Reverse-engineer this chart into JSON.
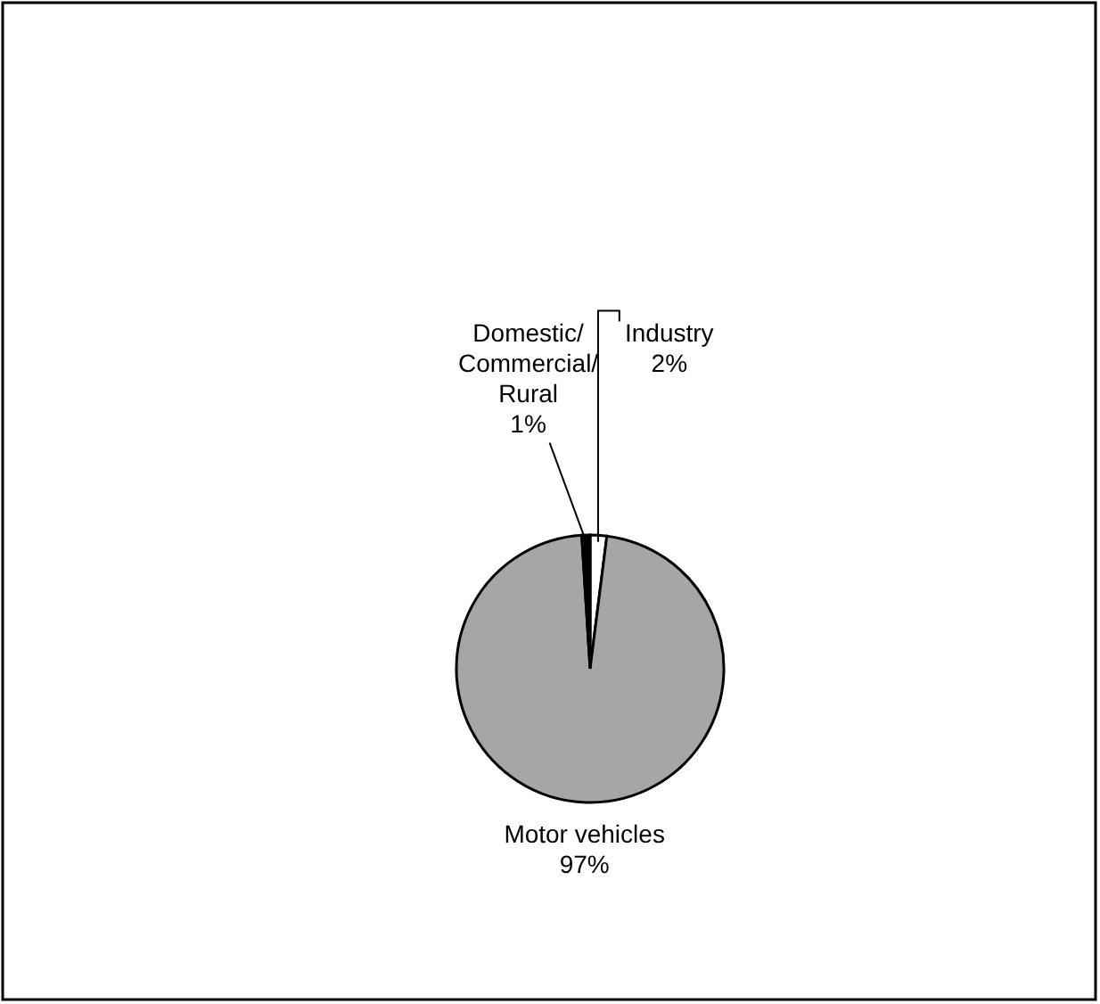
{
  "chart_data": {
    "type": "pie",
    "categories": [
      "Industry",
      "Motor vehicles",
      "Domestic/Commercial/Rural"
    ],
    "values": [
      2,
      97,
      1
    ],
    "colors": [
      "#ffffff",
      "#a6a6a6",
      "#000000"
    ],
    "value_labels": [
      "2%",
      "97%",
      "1%"
    ]
  }
}
